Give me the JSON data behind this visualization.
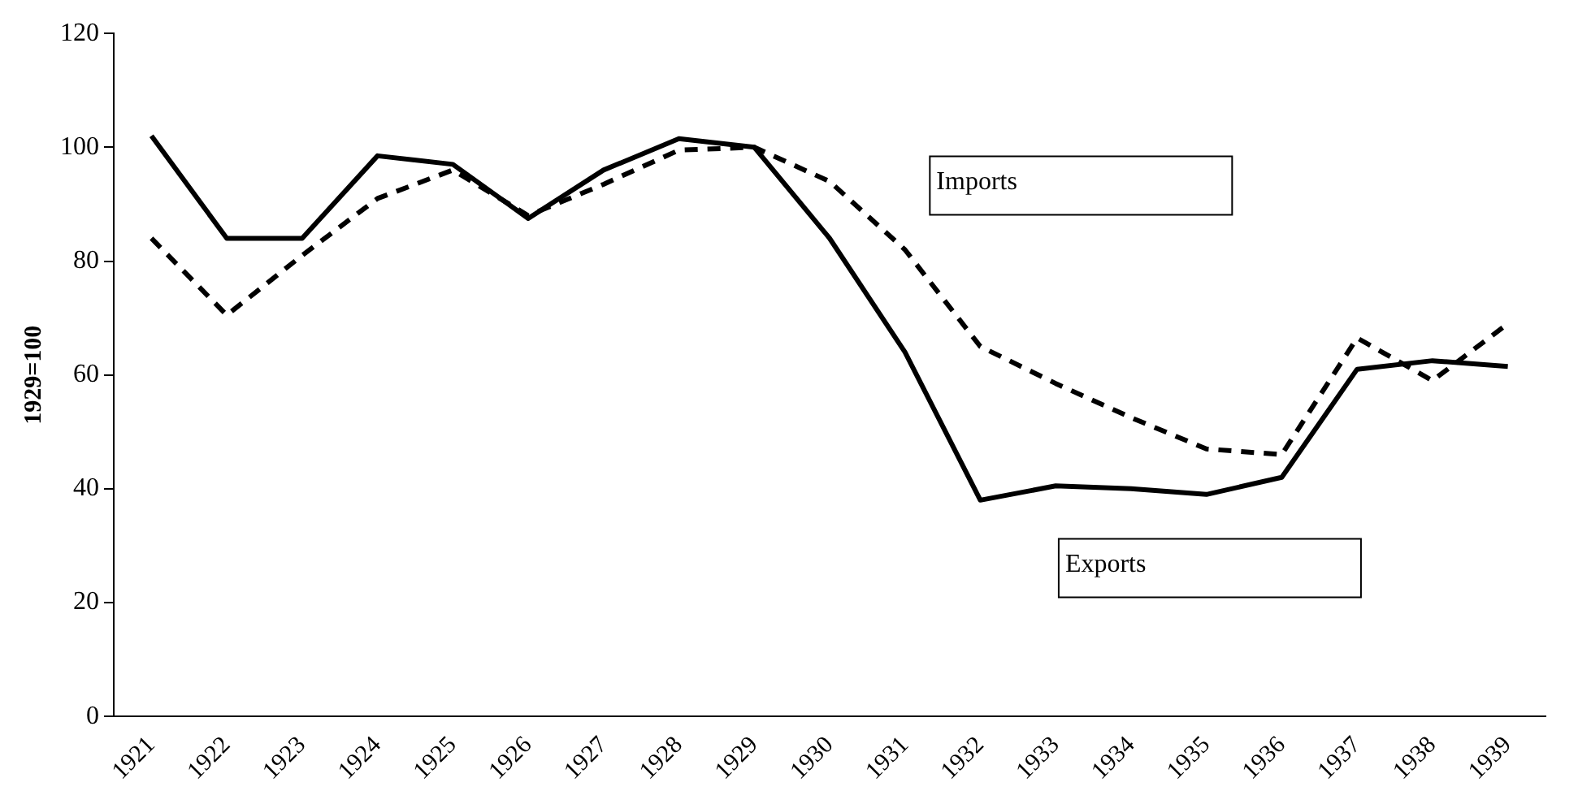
{
  "chart_data": {
    "type": "line",
    "ylabel": "1929=100",
    "categories": [
      "1921",
      "1922",
      "1923",
      "1924",
      "1925",
      "1926",
      "1927",
      "1928",
      "1929",
      "1930",
      "1931",
      "1932",
      "1933",
      "1934",
      "1935",
      "1936",
      "1937",
      "1938",
      "1939"
    ],
    "series": [
      {
        "name": "Exports",
        "color": "#000000",
        "line_style": "solid",
        "values": [
          102,
          84,
          84,
          98.5,
          97,
          87.5,
          96,
          101.5,
          100,
          84,
          64,
          38,
          40.5,
          40,
          39,
          42,
          61,
          62.5,
          61.5
        ]
      },
      {
        "name": "Imports",
        "color": "#000000",
        "line_style": "dashed",
        "values": [
          84,
          70.5,
          81,
          91,
          96,
          88,
          93.5,
          99.5,
          100,
          94,
          82,
          65,
          58.5,
          52.5,
          47,
          46,
          66.5,
          59,
          69
        ]
      }
    ],
    "ylim": [
      0,
      120
    ],
    "yticks": [
      0,
      20,
      40,
      60,
      80,
      100,
      120
    ],
    "grid": false,
    "legend": false,
    "marker": "none"
  }
}
